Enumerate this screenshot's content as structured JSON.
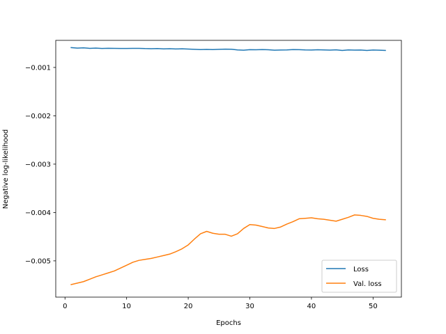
{
  "chart_data": {
    "type": "line",
    "xlabel": "Epochs",
    "ylabel": "Negative log-likelihood",
    "xlim": [
      -1.5,
      54.6
    ],
    "ylim": [
      -0.00575,
      -0.00044
    ],
    "xticks": [
      0,
      10,
      20,
      30,
      40,
      50
    ],
    "yticks": [
      -0.001,
      -0.002,
      -0.003,
      -0.004,
      -0.005
    ],
    "xtick_labels": [
      "0",
      "10",
      "20",
      "30",
      "40",
      "50"
    ],
    "ytick_labels": [
      "−0.001",
      "−0.002",
      "−0.003",
      "−0.004",
      "−0.005"
    ],
    "grid": false,
    "legend_position": "lower-right",
    "series": [
      {
        "name": "Loss",
        "color": "#1f77b4",
        "x": [
          1,
          2,
          3,
          4,
          5,
          6,
          7,
          8,
          9,
          10,
          11,
          12,
          13,
          14,
          15,
          16,
          17,
          18,
          19,
          20,
          21,
          22,
          23,
          24,
          25,
          26,
          27,
          28,
          29,
          30,
          31,
          32,
          33,
          34,
          35,
          36,
          37,
          38,
          39,
          40,
          41,
          42,
          43,
          44,
          45,
          46,
          47,
          48,
          49,
          50,
          51,
          52
        ],
        "y": [
          -0.00059,
          -0.0006,
          -0.000595,
          -0.000605,
          -0.0006,
          -0.000608,
          -0.000603,
          -0.000605,
          -0.000607,
          -0.000608,
          -0.000605,
          -0.000605,
          -0.00061,
          -0.000612,
          -0.00061,
          -0.000617,
          -0.000612,
          -0.000618,
          -0.000614,
          -0.00062,
          -0.000625,
          -0.00063,
          -0.000627,
          -0.00063,
          -0.000625,
          -0.000622,
          -0.000624,
          -0.000638,
          -0.000643,
          -0.000633,
          -0.000635,
          -0.00063,
          -0.000635,
          -0.000644,
          -0.00064,
          -0.000638,
          -0.00063,
          -0.000633,
          -0.000638,
          -0.00064,
          -0.000635,
          -0.000637,
          -0.000642,
          -0.000636,
          -0.000648,
          -0.000638,
          -0.000642,
          -0.00064,
          -0.000648,
          -0.00064,
          -0.000643,
          -0.000648
        ]
      },
      {
        "name": "Val. loss",
        "color": "#ff7f0e",
        "x": [
          1,
          2,
          3,
          4,
          5,
          6,
          7,
          8,
          9,
          10,
          11,
          12,
          13,
          14,
          15,
          16,
          17,
          18,
          19,
          20,
          21,
          22,
          23,
          24,
          25,
          26,
          27,
          28,
          29,
          30,
          31,
          32,
          33,
          34,
          35,
          36,
          37,
          38,
          39,
          40,
          41,
          42,
          43,
          44,
          45,
          46,
          47,
          48,
          49,
          50,
          51,
          52
        ],
        "y": [
          -0.00549,
          -0.00546,
          -0.00543,
          -0.00538,
          -0.00533,
          -0.00529,
          -0.00525,
          -0.00521,
          -0.00515,
          -0.00509,
          -0.00503,
          -0.00499,
          -0.00497,
          -0.00495,
          -0.00492,
          -0.00489,
          -0.00486,
          -0.00481,
          -0.00475,
          -0.00467,
          -0.00455,
          -0.00444,
          -0.00439,
          -0.00443,
          -0.00445,
          -0.00445,
          -0.00449,
          -0.00444,
          -0.00433,
          -0.00425,
          -0.00426,
          -0.00429,
          -0.00432,
          -0.00433,
          -0.0043,
          -0.00424,
          -0.00419,
          -0.00413,
          -0.00412,
          -0.00411,
          -0.00413,
          -0.00414,
          -0.00416,
          -0.00418,
          -0.00414,
          -0.0041,
          -0.00405,
          -0.00406,
          -0.00408,
          -0.00412,
          -0.00414,
          -0.00415
        ]
      }
    ]
  }
}
